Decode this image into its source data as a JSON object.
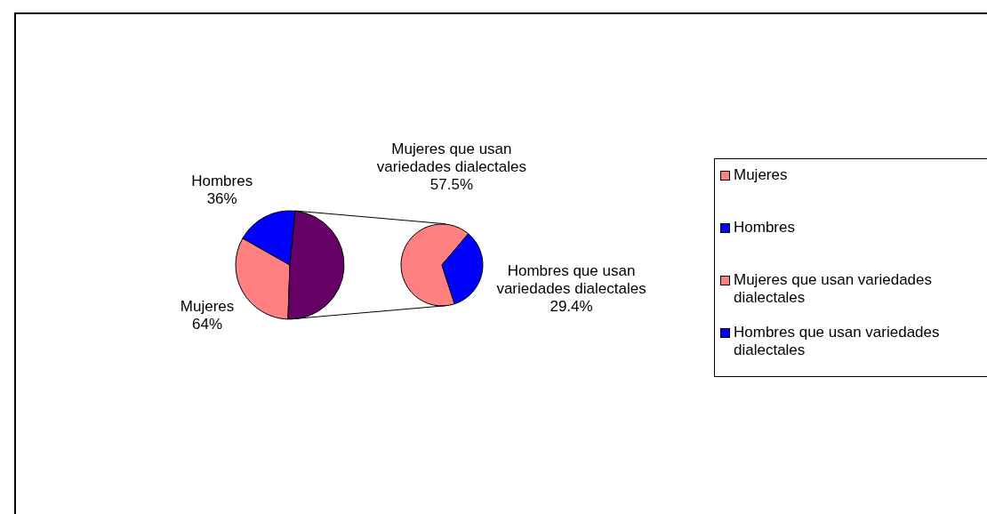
{
  "chart_data": [
    {
      "type": "pie",
      "categories": [
        "Mujeres",
        "Hombres",
        null
      ],
      "values": [
        64,
        36,
        96
      ],
      "colors": [
        "#ff8080",
        "#0000ff",
        "#660066"
      ],
      "value_labels": [
        "64%",
        "36%",
        null
      ],
      "legend": "right"
    },
    {
      "type": "pie",
      "categories": [
        "Mujeres que usan variedades dialectales",
        "Hombres que usan variedades dialectales"
      ],
      "values": [
        57.5,
        29.4
      ],
      "colors": [
        "#ff8080",
        "#0000ff"
      ],
      "value_labels": [
        "57.5%",
        "29.4%"
      ],
      "legend": "right"
    }
  ]
}
